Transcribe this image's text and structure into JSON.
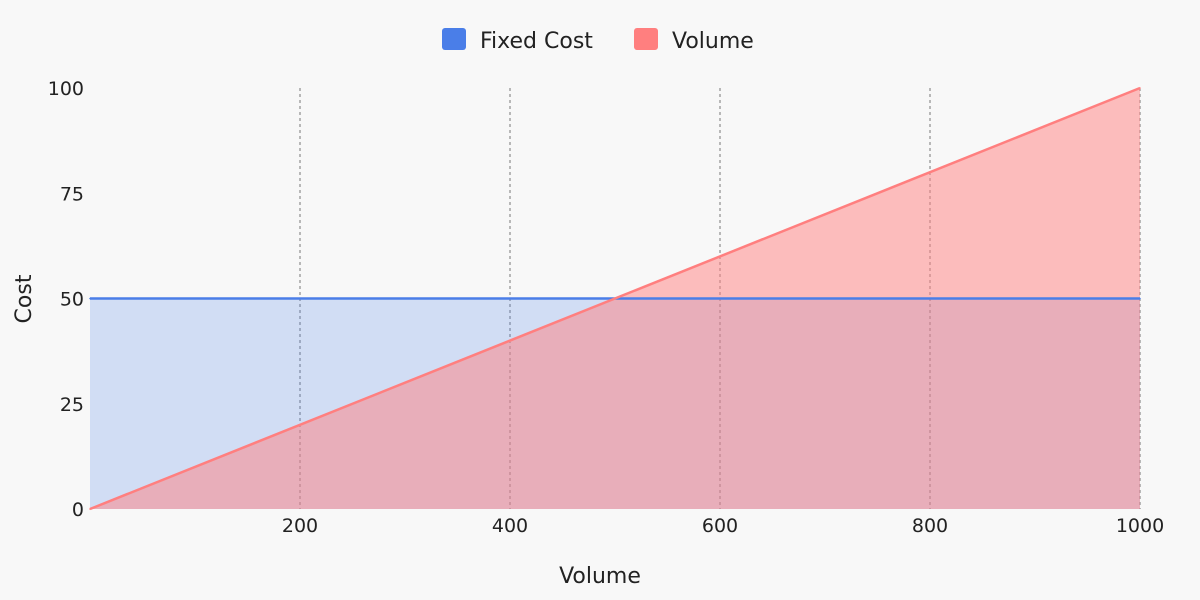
{
  "chart_data": {
    "type": "area",
    "xlabel": "Volume",
    "ylabel": "Cost",
    "xlim": [
      0,
      1000
    ],
    "ylim": [
      0,
      100
    ],
    "x_ticks": [
      200,
      400,
      600,
      800,
      1000
    ],
    "y_ticks": [
      0,
      25,
      50,
      75,
      100
    ],
    "grid": "vertical dashed",
    "legend_position": "top-center",
    "series": [
      {
        "name": "Fixed Cost",
        "color": "#4a7ee8",
        "x": [
          0,
          1000
        ],
        "y": [
          50,
          50
        ]
      },
      {
        "name": "Volume",
        "color": "#ff7f7f",
        "x": [
          0,
          1000
        ],
        "y": [
          0,
          100
        ]
      }
    ]
  }
}
